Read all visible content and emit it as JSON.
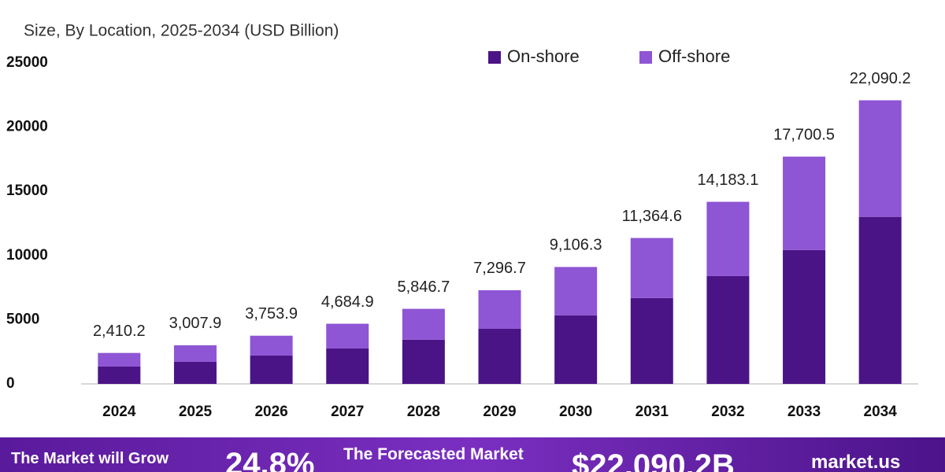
{
  "chart_data": {
    "type": "stacked_bar",
    "subtitle": "Size, By Location, 2025-2034 (USD Billion)",
    "categories": [
      "2024",
      "2025",
      "2026",
      "2027",
      "2028",
      "2029",
      "2030",
      "2031",
      "2032",
      "2033",
      "2034"
    ],
    "series": [
      {
        "name": "On-shore",
        "color": "#4a1486",
        "values": [
          1350,
          1720,
          2210,
          2760,
          3440,
          4290,
          5340,
          6690,
          8400,
          10430,
          13010
        ]
      },
      {
        "name": "Off-shore",
        "color": "#8e55d4",
        "values": [
          1060.2,
          1287.9,
          1543.9,
          1924.9,
          2406.7,
          3006.7,
          3766.3,
          4674.6,
          5783.1,
          7270.5,
          9080.2
        ]
      }
    ],
    "totals": [
      2410.2,
      3007.9,
      3753.9,
      4684.9,
      5846.7,
      7296.7,
      9106.3,
      11364.6,
      14183.1,
      17700.5,
      22090.2
    ],
    "total_labels": [
      "2,410.2",
      "3,007.9",
      "3,753.9",
      "4,684.9",
      "5,846.7",
      "7,296.7",
      "9,106.3",
      "11,364.6",
      "14,183.1",
      "17,700.5",
      "22,090.2"
    ],
    "ylim": [
      0,
      25000
    ],
    "yticks": [
      0,
      5000,
      10000,
      15000,
      20000,
      25000
    ],
    "grid": false,
    "legend": "top"
  },
  "banner": {
    "text1": "The Market will Grow",
    "cagr": "24.8%",
    "text2": "The Forecasted Market",
    "value": "$22,090.2B",
    "brand": "market.us"
  }
}
